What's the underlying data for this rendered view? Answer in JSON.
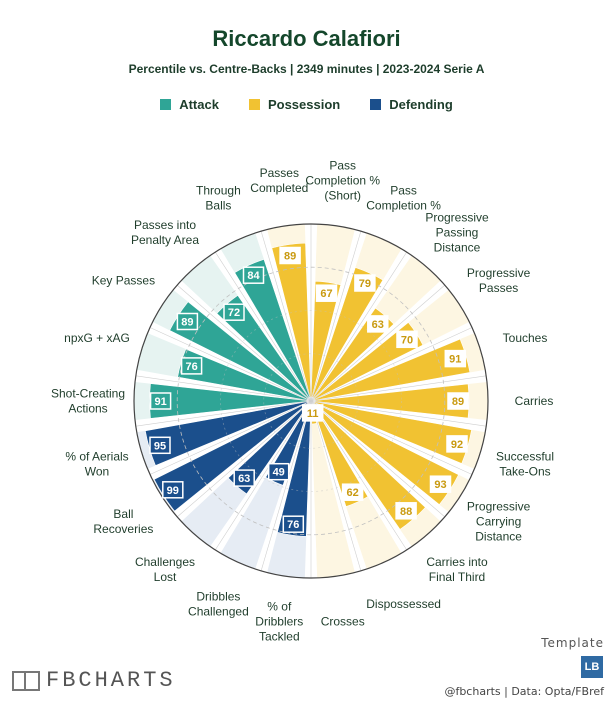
{
  "header": {
    "title": "Riccardo Calafiori",
    "subtitle": "Percentile vs. Centre-Backs | 2349 minutes | 2023-2024 Serie A"
  },
  "legend": [
    {
      "label": "Attack",
      "color": "#2fa596"
    },
    {
      "label": "Possession",
      "color": "#f1c232"
    },
    {
      "label": "Defending",
      "color": "#1b4f8c"
    }
  ],
  "chart_data": {
    "type": "radial-bar",
    "range": [
      0,
      100
    ],
    "grid": true,
    "groups": {
      "Attack": {
        "color": "#2fa596",
        "background": "#e6f3f1"
      },
      "Possession": {
        "color": "#f1c232",
        "background": "#fdf6e2"
      },
      "Defending": {
        "color": "#1b4f8c",
        "background": "#e6ecf4"
      }
    },
    "metrics": [
      {
        "label": "Pass Completion % (Short)",
        "value": 67,
        "group": "Possession"
      },
      {
        "label": "Pass Completion %",
        "value": 79,
        "group": "Possession"
      },
      {
        "label": "Progressive Passing Distance",
        "value": 63,
        "group": "Possession"
      },
      {
        "label": "Progressive Passes",
        "value": 70,
        "group": "Possession"
      },
      {
        "label": "Touches",
        "value": 91,
        "group": "Possession"
      },
      {
        "label": "Carries",
        "value": 89,
        "group": "Possession"
      },
      {
        "label": "Successful Take-Ons",
        "value": 92,
        "group": "Possession"
      },
      {
        "label": "Progressive Carrying Distance",
        "value": 93,
        "group": "Possession"
      },
      {
        "label": "Carries into Final Third",
        "value": 88,
        "group": "Possession"
      },
      {
        "label": "Dispossessed",
        "value": 62,
        "group": "Possession"
      },
      {
        "label": "Crosses",
        "value": 11,
        "group": "Possession"
      },
      {
        "label": "% of Dribblers Tackled",
        "value": 76,
        "group": "Defending"
      },
      {
        "label": "Dribbles Challenged",
        "value": 49,
        "group": "Defending"
      },
      {
        "label": "Challenges Lost",
        "value": 63,
        "group": "Defending"
      },
      {
        "label": "Ball Recoveries",
        "value": 99,
        "group": "Defending"
      },
      {
        "label": "% of Aerials Won",
        "value": 95,
        "group": "Defending"
      },
      {
        "label": "Shot-Creating Actions",
        "value": 91,
        "group": "Attack"
      },
      {
        "label": "npxG + xAG",
        "value": 76,
        "group": "Attack"
      },
      {
        "label": "Key Passes",
        "value": 89,
        "group": "Attack"
      },
      {
        "label": "Passes into Penalty Area",
        "value": 72,
        "group": "Attack"
      },
      {
        "label": "Through Balls",
        "value": 84,
        "group": "Attack"
      },
      {
        "label": "Passes Completed",
        "value": 89,
        "group": "Possession"
      }
    ]
  },
  "footer": {
    "logo_text": "FBCHARTS",
    "template_label": "Template",
    "template_badge": "LB",
    "credits": "@fbcharts | Data: Opta/FBref"
  }
}
